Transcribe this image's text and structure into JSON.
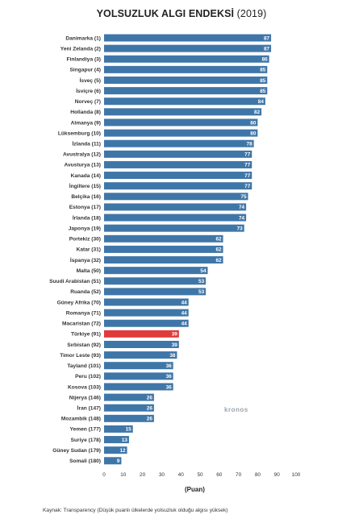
{
  "title": "YOLSUZLUK ALGI ENDEKSİ",
  "title_year": "(2019)",
  "xlabel": "(Puan)",
  "watermark": "kronos",
  "source": "Kaynak: Transparency (Düşük puanlı ülkelerde yolsuzluk olduğu algısı yüksek)",
  "colors": {
    "bar": "#3f76a8",
    "highlight": "#e03a3a",
    "value_text": "#ffffff"
  },
  "chart_data": {
    "type": "bar",
    "orientation": "horizontal",
    "title": "YOLSUZLUK ALGI ENDEKSİ (2019)",
    "xlabel": "(Puan)",
    "xlim": [
      0,
      100
    ],
    "xticks": [
      0,
      10,
      20,
      30,
      40,
      50,
      60,
      70,
      80,
      90,
      100
    ],
    "grid": false,
    "highlight_category": "Türkiye (91)",
    "categories": [
      "Danimarka (1)",
      "Yeni Zelanda (2)",
      "Finlandiya (3)",
      "Singapur (4)",
      "İsveç (5)",
      "İsviçre (6)",
      "Norveç (7)",
      "Hollanda (8)",
      "Almanya (9)",
      "Lüksemburg (10)",
      "İzlanda (11)",
      "Avustralya (12)",
      "Avusturya (13)",
      "Kanada (14)",
      "İngiltere (15)",
      "Belçika (16)",
      "Estonya (17)",
      "İrlanda (18)",
      "Japonya (19)",
      "Portekiz (30)",
      "Katar (31)",
      "İspanya (32)",
      "Malta (50)",
      "Suudi Arabistan (51)",
      "Ruanda (52)",
      "Güney Afrika (70)",
      "Romanya (71)",
      "Macaristan (72)",
      "Türkiye (91)",
      "Sırbistan (92)",
      "Timor Leste (93)",
      "Tayland (101)",
      "Peru (102)",
      "Kosova (103)",
      "Nijerya (146)",
      "İran (147)",
      "Mozambik (148)",
      "Yemen (177)",
      "Suriye (178)",
      "Güney Sudan (179)",
      "Somali (180)"
    ],
    "values": [
      87,
      87,
      86,
      85,
      85,
      85,
      84,
      82,
      80,
      80,
      78,
      77,
      77,
      77,
      77,
      75,
      74,
      74,
      73,
      62,
      62,
      62,
      54,
      53,
      53,
      44,
      44,
      44,
      39,
      39,
      38,
      36,
      36,
      36,
      26,
      26,
      26,
      15,
      13,
      12,
      9
    ]
  }
}
